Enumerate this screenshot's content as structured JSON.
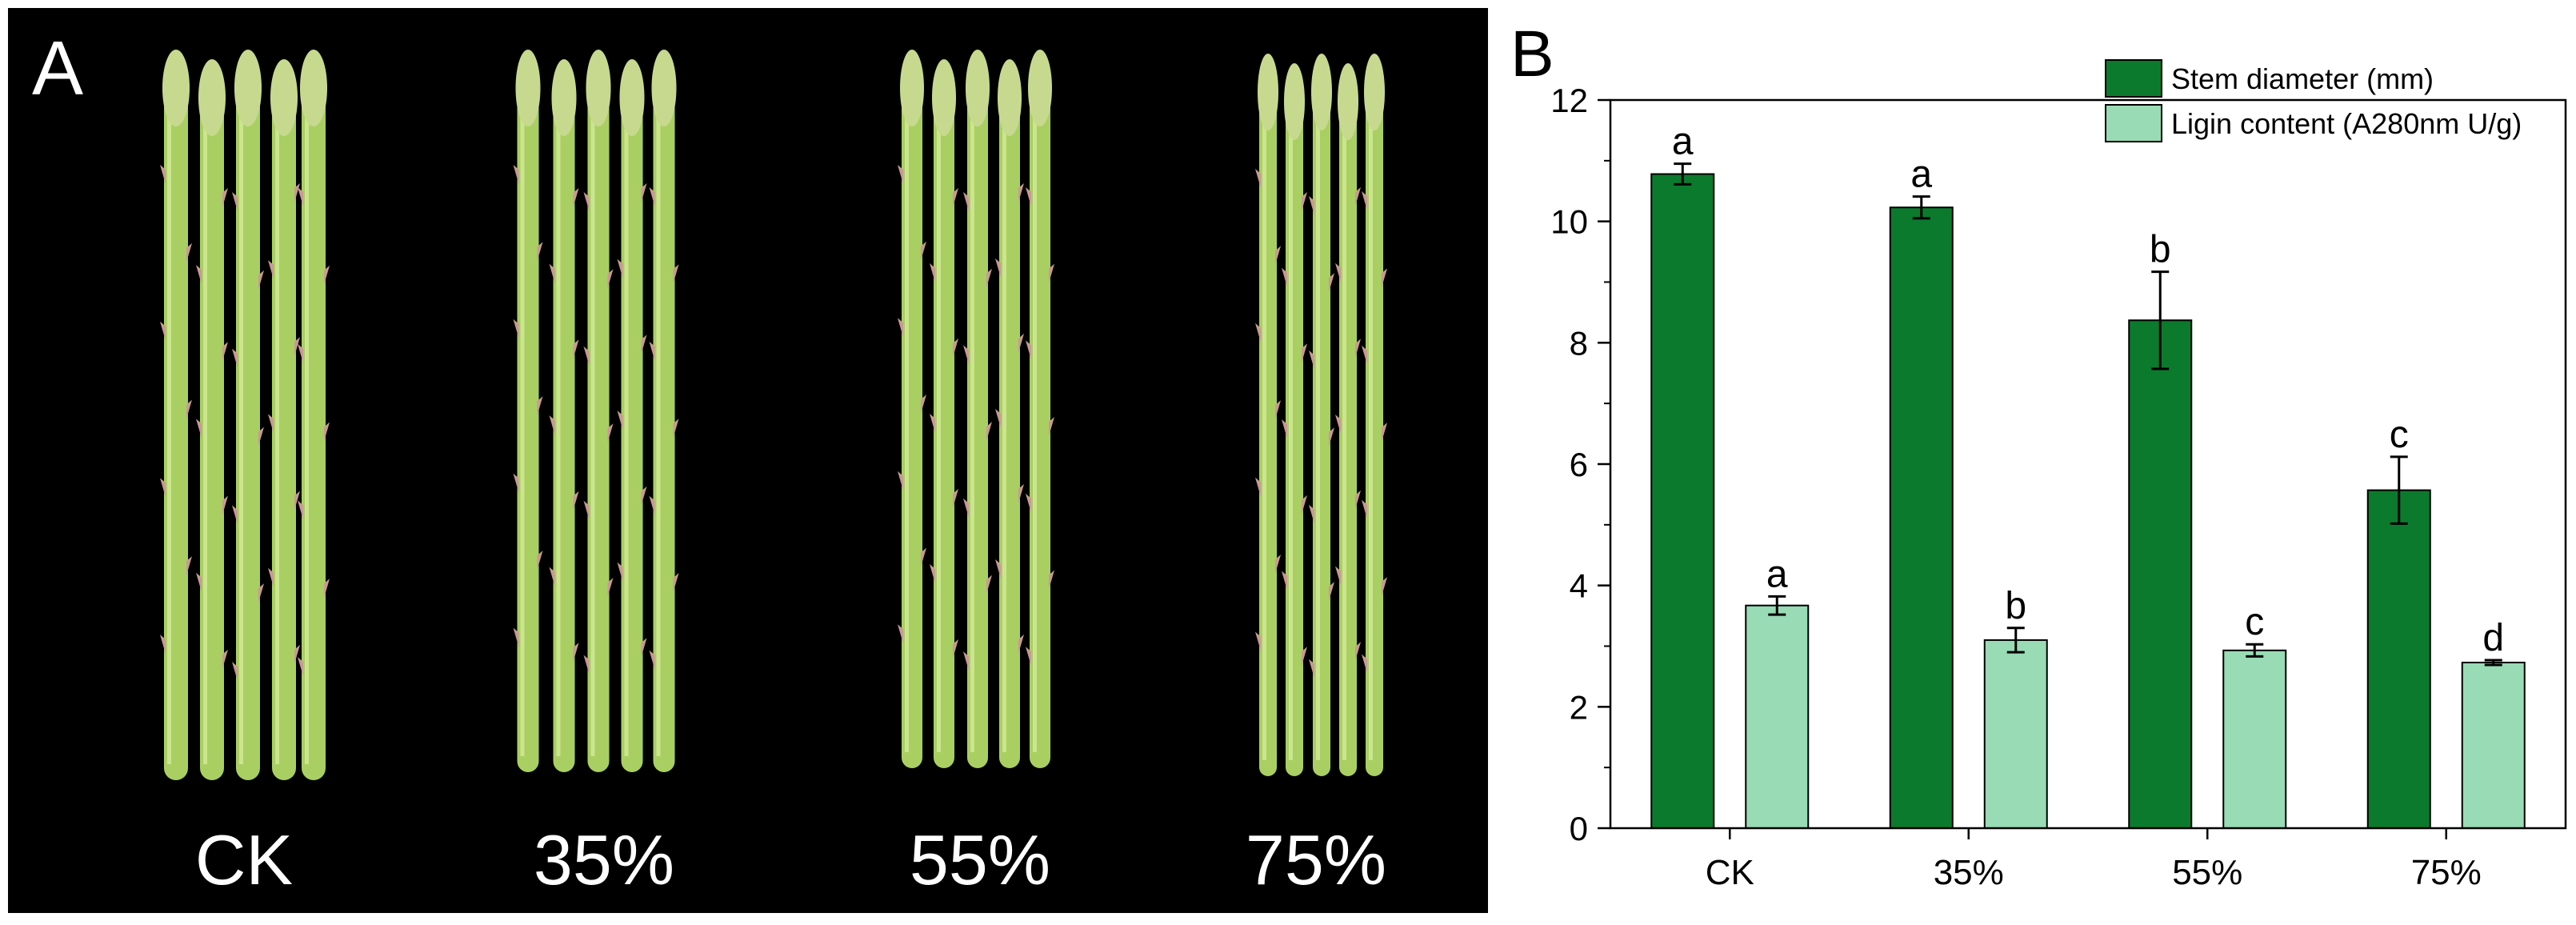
{
  "panel_a": {
    "letter": "A",
    "labels": [
      "CK",
      "35%",
      "55%",
      "75%"
    ]
  },
  "panel_b": {
    "letter": "B"
  },
  "chart_data": {
    "type": "bar",
    "categories": [
      "CK",
      "35%",
      "55%",
      "75%"
    ],
    "series": [
      {
        "name": "Stem diameter (mm)",
        "values": [
          10.78,
          10.23,
          8.37,
          5.57
        ],
        "errors": [
          0.17,
          0.18,
          0.8,
          0.55
        ],
        "letters": [
          "a",
          "a",
          "b",
          "c"
        ],
        "color": "#0b7a2d"
      },
      {
        "name": "Ligin content (A280nm U/g)",
        "values": [
          3.67,
          3.1,
          2.93,
          2.73
        ],
        "errors": [
          0.15,
          0.2,
          0.1,
          0.04
        ],
        "letters": [
          "a",
          "b",
          "c",
          "d"
        ],
        "color": "#98dbb4"
      }
    ],
    "ylim": [
      0,
      12
    ],
    "yticks": [
      0,
      2,
      4,
      6,
      8,
      10,
      12
    ],
    "xlabel": "",
    "ylabel": "",
    "legend": "top-right",
    "grid": false
  }
}
